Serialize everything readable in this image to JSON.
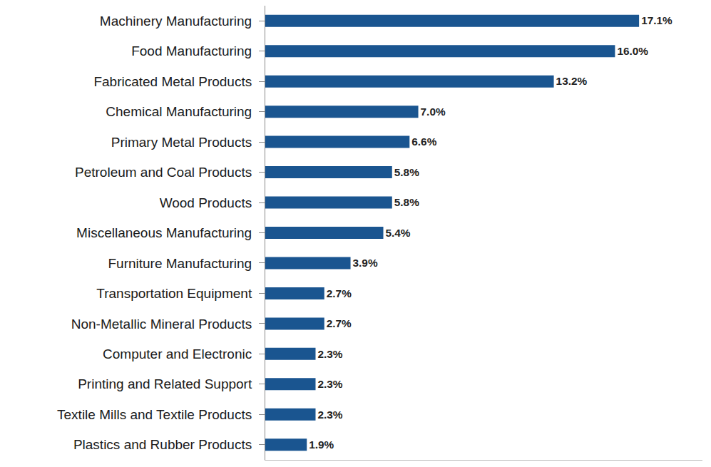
{
  "chart_data": {
    "type": "bar",
    "orientation": "horizontal",
    "categories": [
      "Machinery Manufacturing",
      "Food Manufacturing",
      "Fabricated Metal Products",
      "Chemical Manufacturing",
      "Primary Metal Products",
      "Petroleum and Coal Products",
      "Wood Products",
      "Miscellaneous Manufacturing",
      "Furniture Manufacturing",
      "Transportation Equipment",
      "Non-Metallic Mineral Products",
      "Computer and Electronic",
      "Printing and Related Support",
      "Textile Mills and Textile Products",
      "Plastics and Rubber Products"
    ],
    "values": [
      17.1,
      16.0,
      13.2,
      7.0,
      6.6,
      5.8,
      5.8,
      5.4,
      3.9,
      2.7,
      2.7,
      2.3,
      2.3,
      2.3,
      1.9
    ],
    "value_labels": [
      "17.1%",
      "16.0%",
      "13.2%",
      "7.0%",
      "6.6%",
      "5.8%",
      "5.8%",
      "5.4%",
      "3.9%",
      "2.7%",
      "2.7%",
      "2.3%",
      "2.3%",
      "2.3%",
      "1.9%"
    ],
    "color": "#1a5590",
    "xlim": [
      0,
      20
    ],
    "data_labels": true,
    "tick_labels": "y",
    "grid": false
  }
}
